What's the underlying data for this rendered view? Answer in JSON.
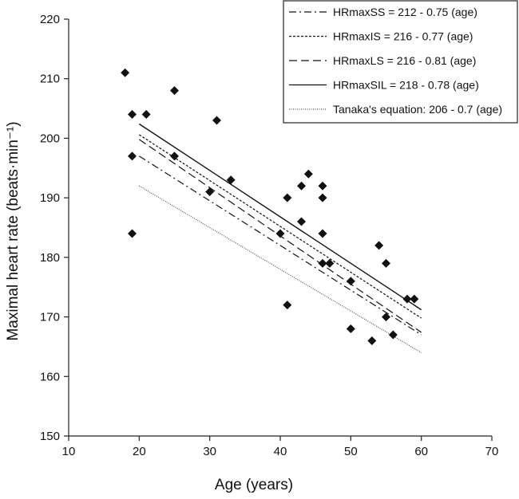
{
  "chart_data": {
    "type": "scatter",
    "title": "",
    "xlabel": "Age (years)",
    "ylabel": "Maximal heart rate (beats·min⁻¹)",
    "xlim": [
      10,
      70
    ],
    "ylim": [
      150,
      220
    ],
    "xticks": [
      10,
      20,
      30,
      40,
      50,
      60,
      70
    ],
    "yticks": [
      150,
      160,
      170,
      180,
      190,
      200,
      210,
      220
    ],
    "grid": false,
    "legend_placement": "top-right",
    "points": [
      [
        18,
        211
      ],
      [
        19,
        204
      ],
      [
        21,
        204
      ],
      [
        19,
        197
      ],
      [
        19,
        184
      ],
      [
        25,
        208
      ],
      [
        25,
        197
      ],
      [
        31,
        203
      ],
      [
        33,
        193
      ],
      [
        30,
        191
      ],
      [
        41,
        190
      ],
      [
        43,
        192
      ],
      [
        44,
        194
      ],
      [
        46,
        192
      ],
      [
        46,
        190
      ],
      [
        43,
        186
      ],
      [
        40,
        184
      ],
      [
        46,
        184
      ],
      [
        54,
        182
      ],
      [
        55,
        179
      ],
      [
        46,
        179
      ],
      [
        47,
        179
      ],
      [
        50,
        176
      ],
      [
        41,
        172
      ],
      [
        58,
        173
      ],
      [
        59,
        173
      ],
      [
        55,
        170
      ],
      [
        50,
        168
      ],
      [
        53,
        166
      ],
      [
        56,
        167
      ]
    ],
    "marker": "diamond",
    "series": [
      {
        "name": "HRmaxSS = 212 - 0.75 (age)",
        "intercept": 212,
        "slope": -0.75,
        "x_range": [
          20,
          60
        ],
        "dash": "dash-dot"
      },
      {
        "name": "HRmaxIS = 216 - 0.77 (age)",
        "intercept": 216,
        "slope": -0.77,
        "x_range": [
          20,
          60
        ],
        "dash": "short-dash"
      },
      {
        "name": "HRmaxLS = 216 - 0.81 (age)",
        "intercept": 216,
        "slope": -0.81,
        "x_range": [
          20,
          60
        ],
        "dash": "long-dash"
      },
      {
        "name": "HRmaxSIL = 218 - 0.78 (age)",
        "intercept": 218,
        "slope": -0.78,
        "x_range": [
          20,
          60
        ],
        "dash": "solid"
      },
      {
        "name": "Tanaka's equation: 206 - 0.7 (age)",
        "intercept": 206,
        "slope": -0.7,
        "x_range": [
          20,
          60
        ],
        "dash": "dotted"
      }
    ],
    "colors": {
      "marks": "#111111",
      "tanaka": "#555555"
    }
  }
}
